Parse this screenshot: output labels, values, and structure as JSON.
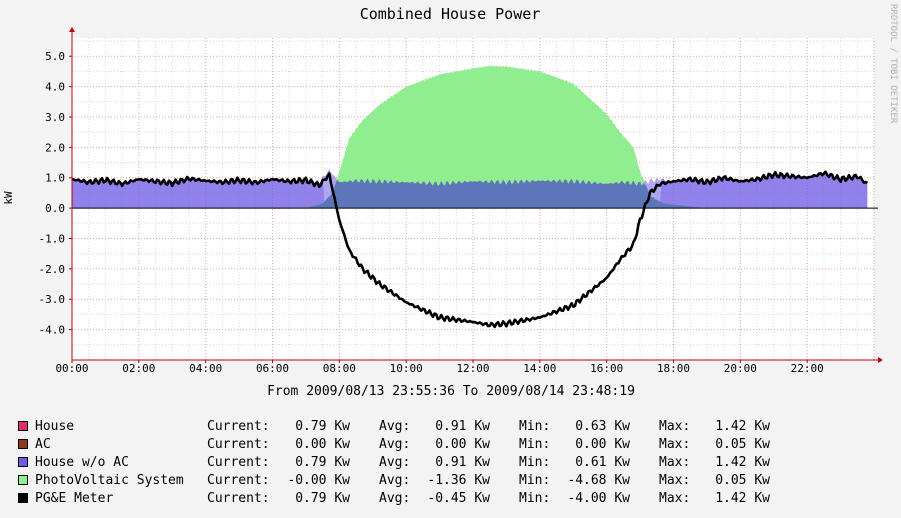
{
  "chart_data": {
    "type": "area",
    "title": "Combined House Power",
    "ylabel": "kW",
    "watermark": "RRDTOOL / TOBI OETIKER",
    "ylim": [
      -5.0,
      5.6
    ],
    "xlim": [
      "00:00",
      "24:00"
    ],
    "grid": true,
    "yticks": [
      "5.0",
      "4.0",
      "3.0",
      "2.0",
      "1.0",
      "0.0",
      "-1.0",
      "-2.0",
      "-3.0",
      "-4.0"
    ],
    "xticks": [
      "00:00",
      "02:00",
      "04:00",
      "06:00",
      "08:00",
      "10:00",
      "12:00",
      "14:00",
      "16:00",
      "18:00",
      "20:00",
      "22:00"
    ],
    "period": "From 2009/08/13 23:55:36 To 2009/08/14 23:48:19",
    "colors": {
      "house": "#e0306a",
      "ac": "#8b3a1a",
      "house_wo_ac": "#6f5ce6",
      "photovoltaic": "#90ee90",
      "overlap": "#3f8e84",
      "pge_meter": "#000000",
      "axis": "#c00000",
      "grid": "#e39a9a"
    },
    "series": [
      {
        "name": "House w/o AC",
        "x": [
          0.0,
          0.5,
          1.0,
          1.5,
          2.0,
          2.5,
          3.0,
          3.5,
          4.0,
          4.5,
          5.0,
          5.5,
          6.0,
          6.5,
          7.0,
          7.4,
          7.7,
          8.0,
          8.5,
          9.0,
          10.0,
          11.0,
          12.0,
          13.0,
          14.0,
          15.0,
          16.0,
          16.5,
          17.0,
          17.3,
          17.6,
          18.0,
          18.5,
          19.0,
          19.5,
          20.0,
          20.5,
          21.0,
          21.5,
          22.0,
          22.5,
          23.0,
          23.5,
          23.8
        ],
        "values": [
          0.95,
          0.85,
          0.92,
          0.8,
          0.95,
          0.88,
          0.82,
          0.97,
          0.9,
          0.85,
          0.92,
          0.84,
          0.95,
          0.88,
          0.92,
          0.86,
          1.25,
          0.85,
          0.9,
          0.88,
          0.85,
          0.8,
          0.88,
          0.85,
          0.9,
          0.88,
          0.8,
          0.85,
          0.8,
          0.9,
          0.95,
          0.88,
          0.95,
          0.85,
          1.0,
          0.88,
          0.95,
          1.1,
          1.05,
          1.0,
          1.15,
          0.95,
          1.05,
          0.85
        ]
      },
      {
        "name": "PhotoVoltaic System",
        "x": [
          0.0,
          7.0,
          7.5,
          7.8,
          8.0,
          8.3,
          8.7,
          9.2,
          10.0,
          11.0,
          12.0,
          12.5,
          13.0,
          14.0,
          15.0,
          16.0,
          16.4,
          16.8,
          17.0,
          17.3,
          17.7,
          18.5,
          19.0,
          24.0
        ],
        "values": [
          0.0,
          0.0,
          0.15,
          0.5,
          1.2,
          2.3,
          2.9,
          3.4,
          4.0,
          4.4,
          4.6,
          4.68,
          4.66,
          4.5,
          4.1,
          3.1,
          2.5,
          2.0,
          1.2,
          0.4,
          0.15,
          0.05,
          0.0,
          0.0
        ]
      },
      {
        "name": "PG&E Meter",
        "x": [
          0.0,
          0.5,
          1.0,
          1.5,
          2.0,
          2.5,
          3.0,
          3.5,
          4.0,
          4.5,
          5.0,
          5.5,
          6.0,
          6.5,
          7.0,
          7.4,
          7.7,
          8.0,
          8.3,
          8.7,
          9.2,
          10.0,
          11.0,
          12.0,
          12.5,
          13.0,
          14.0,
          15.0,
          16.0,
          16.4,
          16.8,
          17.0,
          17.3,
          17.6,
          18.0,
          18.5,
          19.0,
          19.5,
          20.0,
          20.5,
          21.0,
          21.5,
          22.0,
          22.5,
          23.0,
          23.5,
          23.8
        ],
        "values": [
          0.95,
          0.85,
          0.92,
          0.8,
          0.95,
          0.88,
          0.82,
          0.97,
          0.9,
          0.85,
          0.92,
          0.84,
          0.95,
          0.88,
          0.92,
          0.75,
          1.1,
          -0.4,
          -1.4,
          -2.0,
          -2.5,
          -3.1,
          -3.6,
          -3.75,
          -3.85,
          -3.8,
          -3.6,
          -3.2,
          -2.3,
          -1.7,
          -1.2,
          -0.4,
          0.5,
          0.8,
          0.88,
          0.95,
          0.85,
          1.0,
          0.88,
          0.95,
          1.1,
          1.05,
          1.0,
          1.15,
          0.95,
          1.05,
          0.8
        ]
      }
    ]
  },
  "legend": [
    {
      "key": "house",
      "name": "House",
      "current": "0.79 Kw",
      "avg": "0.91 Kw",
      "min": "0.63 Kw",
      "max": "1.42 Kw"
    },
    {
      "key": "ac",
      "name": "AC",
      "current": "0.00 Kw",
      "avg": "0.00 Kw",
      "min": "0.00 Kw",
      "max": "0.05 Kw"
    },
    {
      "key": "house_wo_ac",
      "name": "House w/o AC",
      "current": "0.79 Kw",
      "avg": "0.91 Kw",
      "min": "0.61 Kw",
      "max": "1.42 Kw"
    },
    {
      "key": "photovoltaic",
      "name": "PhotoVoltaic System",
      "current": "-0.00 Kw",
      "avg": "-1.36 Kw",
      "min": "-4.68 Kw",
      "max": "0.05 Kw"
    },
    {
      "key": "pge_meter",
      "name": "PG&E Meter",
      "current": "0.79 Kw",
      "avg": "-0.45 Kw",
      "min": "-4.00 Kw",
      "max": "1.42 Kw"
    }
  ],
  "legend_labels": {
    "current": "Current:",
    "avg": "Avg:",
    "min": "Min:",
    "max": "Max:"
  }
}
